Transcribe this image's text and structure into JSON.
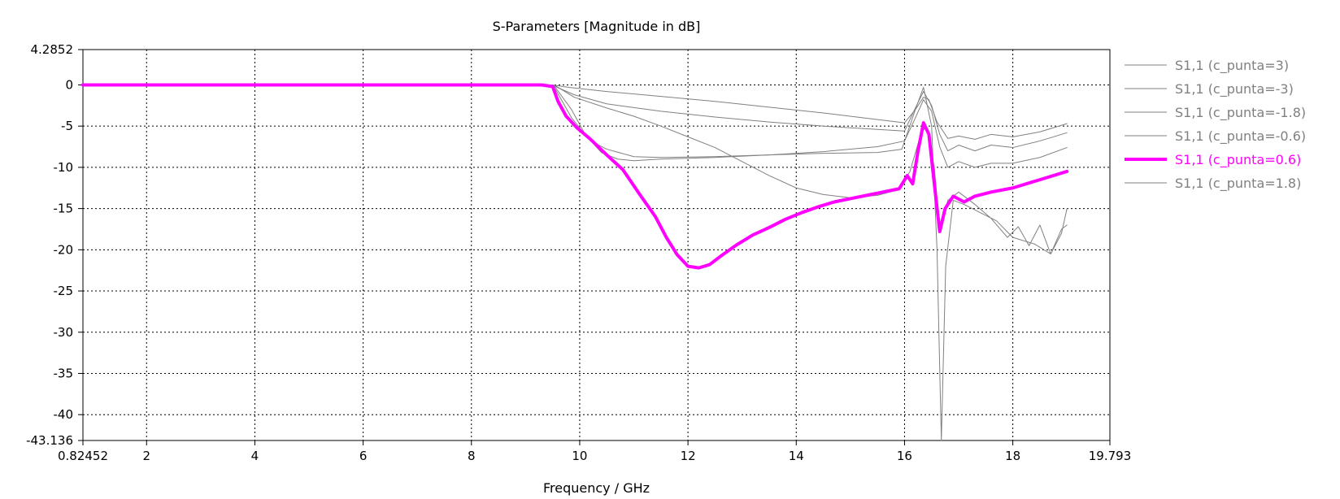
{
  "chart_data": {
    "type": "line",
    "title": "S-Parameters [Magnitude in dB]",
    "xlabel": "Frequency / GHz",
    "ylabel": "",
    "xlim": [
      0.82452,
      19.793
    ],
    "ylim": [
      -43.136,
      4.2852
    ],
    "x_ticks": [
      0.82452,
      2,
      4,
      6,
      8,
      10,
      12,
      14,
      16,
      18,
      19.793
    ],
    "x_tick_labels": [
      "0.82452",
      "2",
      "4",
      "6",
      "8",
      "10",
      "12",
      "14",
      "16",
      "18",
      "19.793"
    ],
    "y_ticks": [
      4.2852,
      0,
      -5,
      -10,
      -15,
      -20,
      -25,
      -30,
      -35,
      -40,
      -43.136
    ],
    "y_tick_labels": [
      "4.2852",
      "0",
      "-5",
      "-10",
      "-15",
      "-20",
      "-25",
      "-30",
      "-35",
      "-40",
      "-43.136"
    ],
    "grid": true,
    "legend_position": "right",
    "series": [
      {
        "name": "S1,1 (c_punta=3)",
        "color": "#808080",
        "highlight": false,
        "points": [
          [
            0.82452,
            0
          ],
          [
            9.0,
            0
          ],
          [
            9.4,
            0
          ],
          [
            9.5,
            0
          ],
          [
            9.8,
            -0.3
          ],
          [
            10.5,
            -0.8
          ],
          [
            11.5,
            -1.4
          ],
          [
            12.5,
            -2.0
          ],
          [
            13.5,
            -2.7
          ],
          [
            14.5,
            -3.4
          ],
          [
            15.5,
            -4.2
          ],
          [
            16.0,
            -4.6
          ],
          [
            16.2,
            -3.0
          ],
          [
            16.35,
            -1.5
          ],
          [
            16.45,
            -1.8
          ],
          [
            16.6,
            -4.5
          ],
          [
            16.8,
            -6.5
          ],
          [
            17.0,
            -6.2
          ],
          [
            17.3,
            -6.6
          ],
          [
            17.6,
            -6.0
          ],
          [
            18.0,
            -6.3
          ],
          [
            18.5,
            -5.7
          ],
          [
            19.0,
            -4.7
          ]
        ]
      },
      {
        "name": "S1,1 (c_punta=-3)",
        "color": "#808080",
        "highlight": false,
        "points": [
          [
            0.82452,
            0
          ],
          [
            9.0,
            0
          ],
          [
            9.4,
            0
          ],
          [
            9.55,
            -0.1
          ],
          [
            9.9,
            -1.5
          ],
          [
            10.5,
            -2.8
          ],
          [
            11.0,
            -3.8
          ],
          [
            11.5,
            -5.0
          ],
          [
            12.0,
            -6.3
          ],
          [
            12.5,
            -7.6
          ],
          [
            13.0,
            -9.3
          ],
          [
            13.5,
            -11.0
          ],
          [
            14.0,
            -12.5
          ],
          [
            14.5,
            -13.3
          ],
          [
            15.0,
            -13.7
          ],
          [
            15.5,
            -13.4
          ],
          [
            15.9,
            -12.7
          ],
          [
            16.1,
            -10.5
          ],
          [
            16.3,
            -6.0
          ],
          [
            16.4,
            -5.0
          ],
          [
            16.55,
            -10.0
          ],
          [
            16.65,
            -17.5
          ],
          [
            16.8,
            -14.0
          ],
          [
            17.0,
            -13.0
          ],
          [
            17.3,
            -14.5
          ],
          [
            17.6,
            -16.2
          ],
          [
            17.9,
            -18.5
          ],
          [
            18.1,
            -17.2
          ],
          [
            18.3,
            -19.5
          ],
          [
            18.5,
            -17.0
          ],
          [
            18.7,
            -20.5
          ],
          [
            18.9,
            -18.0
          ],
          [
            19.0,
            -15.0
          ]
        ]
      },
      {
        "name": "S1,1 (c_punta=-1.8)",
        "color": "#808080",
        "highlight": false,
        "points": [
          [
            0.82452,
            0
          ],
          [
            9.0,
            0
          ],
          [
            9.4,
            0
          ],
          [
            9.55,
            -0.2
          ],
          [
            9.9,
            -1.2
          ],
          [
            10.5,
            -2.3
          ],
          [
            11.5,
            -3.2
          ],
          [
            12.5,
            -3.9
          ],
          [
            13.5,
            -4.5
          ],
          [
            14.5,
            -5.0
          ],
          [
            15.5,
            -5.4
          ],
          [
            16.0,
            -5.6
          ],
          [
            16.2,
            -2.8
          ],
          [
            16.35,
            -0.8
          ],
          [
            16.5,
            -2.5
          ],
          [
            16.65,
            -6.0
          ],
          [
            16.8,
            -8.0
          ],
          [
            17.0,
            -7.3
          ],
          [
            17.3,
            -8.0
          ],
          [
            17.6,
            -7.3
          ],
          [
            18.0,
            -7.6
          ],
          [
            18.5,
            -6.8
          ],
          [
            19.0,
            -5.8
          ]
        ]
      },
      {
        "name": "S1,1 (c_punta=-0.6)",
        "color": "#808080",
        "highlight": false,
        "points": [
          [
            0.82452,
            0
          ],
          [
            9.0,
            0
          ],
          [
            9.4,
            0
          ],
          [
            9.55,
            -0.3
          ],
          [
            9.85,
            -3.0
          ],
          [
            10.1,
            -6.0
          ],
          [
            10.4,
            -8.2
          ],
          [
            10.7,
            -9.0
          ],
          [
            11.0,
            -9.2
          ],
          [
            11.5,
            -9.0
          ],
          [
            12.5,
            -8.8
          ],
          [
            13.5,
            -8.5
          ],
          [
            14.5,
            -8.1
          ],
          [
            15.5,
            -7.5
          ],
          [
            16.0,
            -6.8
          ],
          [
            16.2,
            -4.0
          ],
          [
            16.35,
            -1.8
          ],
          [
            16.5,
            -3.2
          ],
          [
            16.65,
            -7.5
          ],
          [
            16.8,
            -10.0
          ],
          [
            17.0,
            -9.3
          ],
          [
            17.3,
            -10.0
          ],
          [
            17.6,
            -9.5
          ],
          [
            18.0,
            -9.5
          ],
          [
            18.5,
            -8.8
          ],
          [
            19.0,
            -7.6
          ]
        ]
      },
      {
        "name": "S1,1 (c_punta=0.6)",
        "color": "#ff00ff",
        "highlight": true,
        "points": [
          [
            0.82452,
            0
          ],
          [
            9.0,
            0
          ],
          [
            9.3,
            0
          ],
          [
            9.5,
            -0.2
          ],
          [
            9.6,
            -2.0
          ],
          [
            9.75,
            -3.8
          ],
          [
            9.95,
            -5.2
          ],
          [
            10.2,
            -6.6
          ],
          [
            10.5,
            -8.5
          ],
          [
            10.8,
            -10.3
          ],
          [
            11.1,
            -13.2
          ],
          [
            11.4,
            -16.0
          ],
          [
            11.6,
            -18.5
          ],
          [
            11.8,
            -20.6
          ],
          [
            12.0,
            -22.0
          ],
          [
            12.2,
            -22.2
          ],
          [
            12.4,
            -21.8
          ],
          [
            12.6,
            -20.8
          ],
          [
            12.9,
            -19.4
          ],
          [
            13.2,
            -18.2
          ],
          [
            13.5,
            -17.3
          ],
          [
            13.8,
            -16.3
          ],
          [
            14.1,
            -15.5
          ],
          [
            14.4,
            -14.8
          ],
          [
            14.7,
            -14.2
          ],
          [
            15.0,
            -13.8
          ],
          [
            15.3,
            -13.4
          ],
          [
            15.6,
            -13.0
          ],
          [
            15.9,
            -12.6
          ],
          [
            16.05,
            -11.0
          ],
          [
            16.15,
            -12.0
          ],
          [
            16.25,
            -8.0
          ],
          [
            16.35,
            -4.6
          ],
          [
            16.45,
            -6.0
          ],
          [
            16.55,
            -12.0
          ],
          [
            16.65,
            -17.8
          ],
          [
            16.75,
            -15.0
          ],
          [
            16.9,
            -13.5
          ],
          [
            17.1,
            -14.2
          ],
          [
            17.3,
            -13.5
          ],
          [
            17.6,
            -13.0
          ],
          [
            18.0,
            -12.5
          ],
          [
            18.5,
            -11.5
          ],
          [
            19.0,
            -10.5
          ]
        ]
      },
      {
        "name": "S1,1 (c_punta=1.8)",
        "color": "#808080",
        "highlight": false,
        "points": [
          [
            0.82452,
            0
          ],
          [
            9.0,
            0
          ],
          [
            9.4,
            0
          ],
          [
            9.55,
            -0.5
          ],
          [
            9.85,
            -4.0
          ],
          [
            10.2,
            -6.8
          ],
          [
            10.5,
            -7.8
          ],
          [
            11.0,
            -8.7
          ],
          [
            11.5,
            -8.8
          ],
          [
            12.5,
            -8.7
          ],
          [
            13.5,
            -8.5
          ],
          [
            14.5,
            -8.3
          ],
          [
            15.5,
            -8.2
          ],
          [
            15.95,
            -7.8
          ],
          [
            16.2,
            -3.0
          ],
          [
            16.35,
            -0.3
          ],
          [
            16.5,
            -5.0
          ],
          [
            16.6,
            -20.0
          ],
          [
            16.68,
            -43.136
          ],
          [
            16.76,
            -22.0
          ],
          [
            16.9,
            -14.0
          ],
          [
            17.1,
            -14.5
          ],
          [
            17.4,
            -15.5
          ],
          [
            17.7,
            -16.5
          ],
          [
            18.0,
            -18.5
          ],
          [
            18.4,
            -19.3
          ],
          [
            18.7,
            -20.5
          ],
          [
            18.9,
            -17.5
          ],
          [
            19.0,
            -17.0
          ]
        ]
      }
    ]
  }
}
